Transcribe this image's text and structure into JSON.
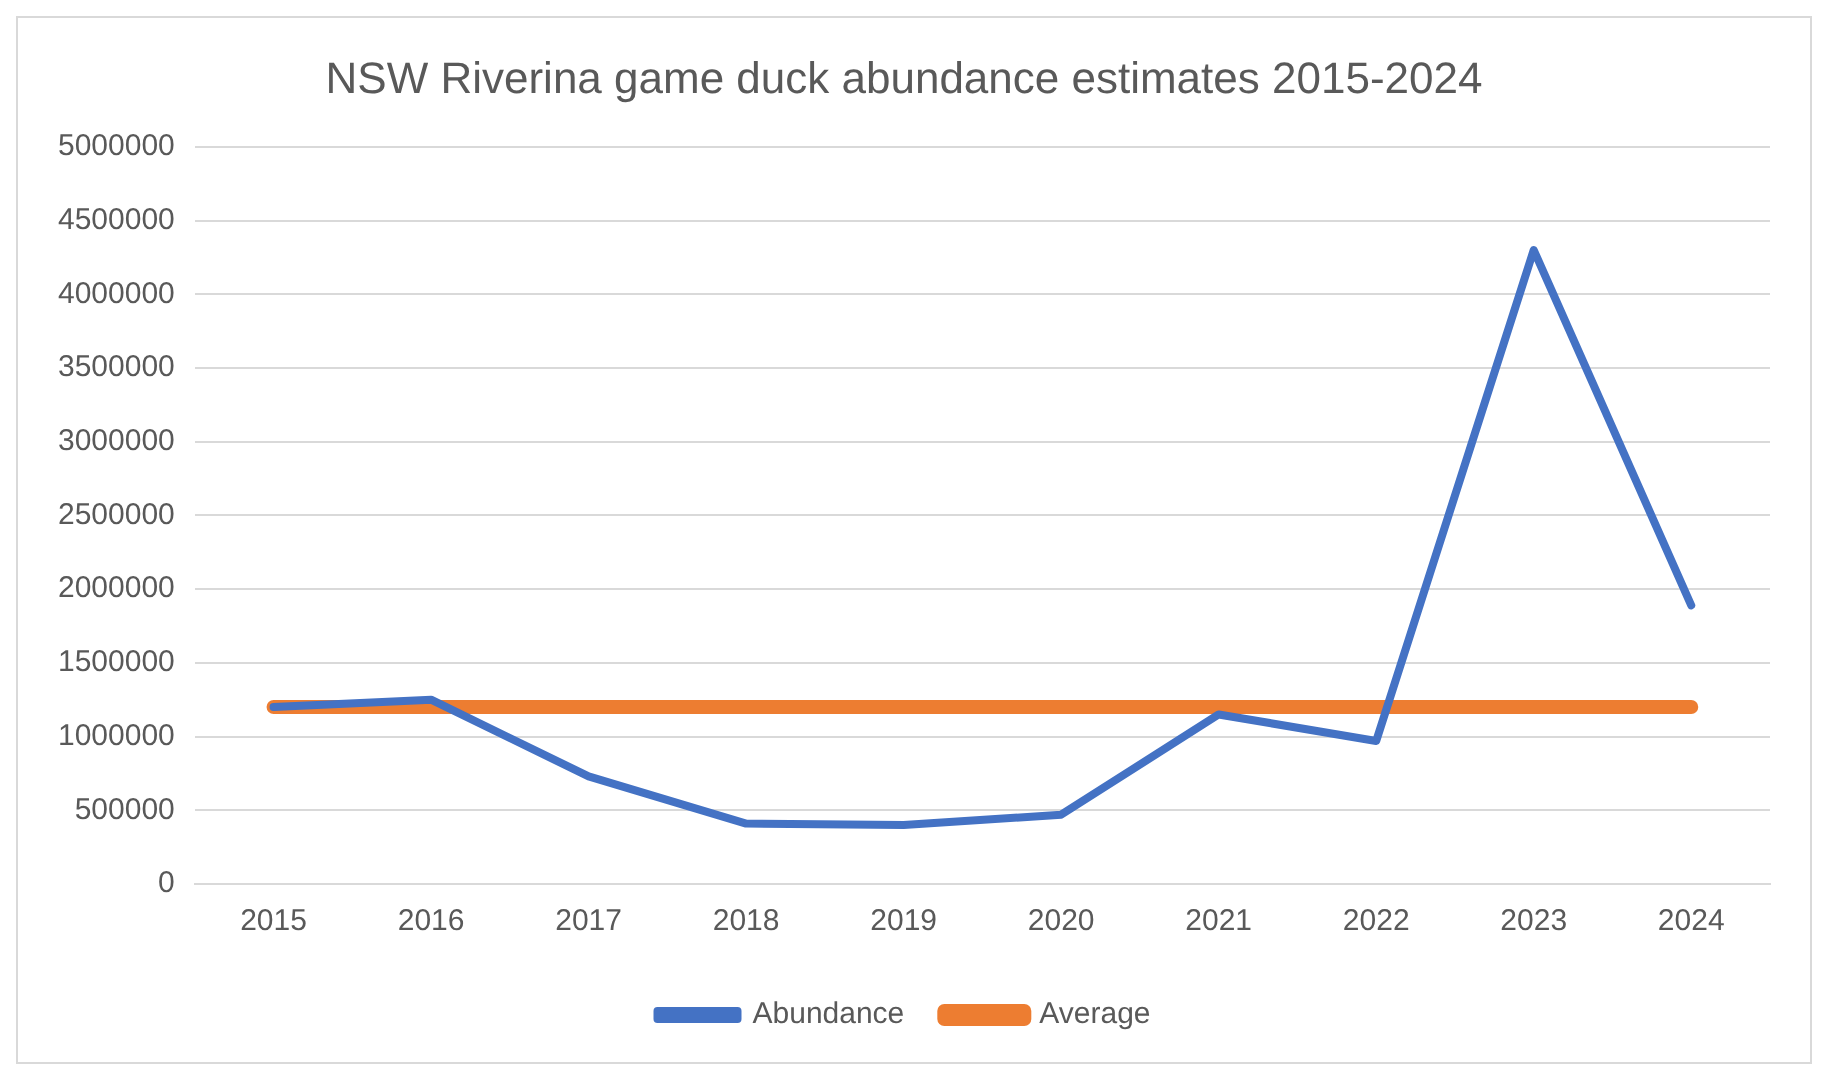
{
  "chart_data": {
    "type": "line",
    "title": "NSW Riverina game duck abundance estimates 2015-2024",
    "categories": [
      "2015",
      "2016",
      "2017",
      "2018",
      "2019",
      "2020",
      "2021",
      "2022",
      "2023",
      "2024"
    ],
    "series": [
      {
        "name": "Abundance",
        "color": "#4472c4",
        "values": [
          1200000,
          1250000,
          730000,
          410000,
          400000,
          470000,
          1150000,
          970000,
          4300000,
          1890000
        ]
      },
      {
        "name": "Average",
        "color": "#ed7d31",
        "values": [
          1200000,
          1200000,
          1200000,
          1200000,
          1200000,
          1200000,
          1200000,
          1200000,
          1200000,
          1200000
        ]
      }
    ],
    "ylim": [
      0,
      5000000
    ],
    "yticks": [
      0,
      500000,
      1000000,
      1500000,
      2000000,
      2500000,
      3000000,
      3500000,
      4000000,
      4500000,
      5000000
    ],
    "grid": "y",
    "legend": "bottom",
    "marker": "none",
    "line_style": "solid"
  }
}
